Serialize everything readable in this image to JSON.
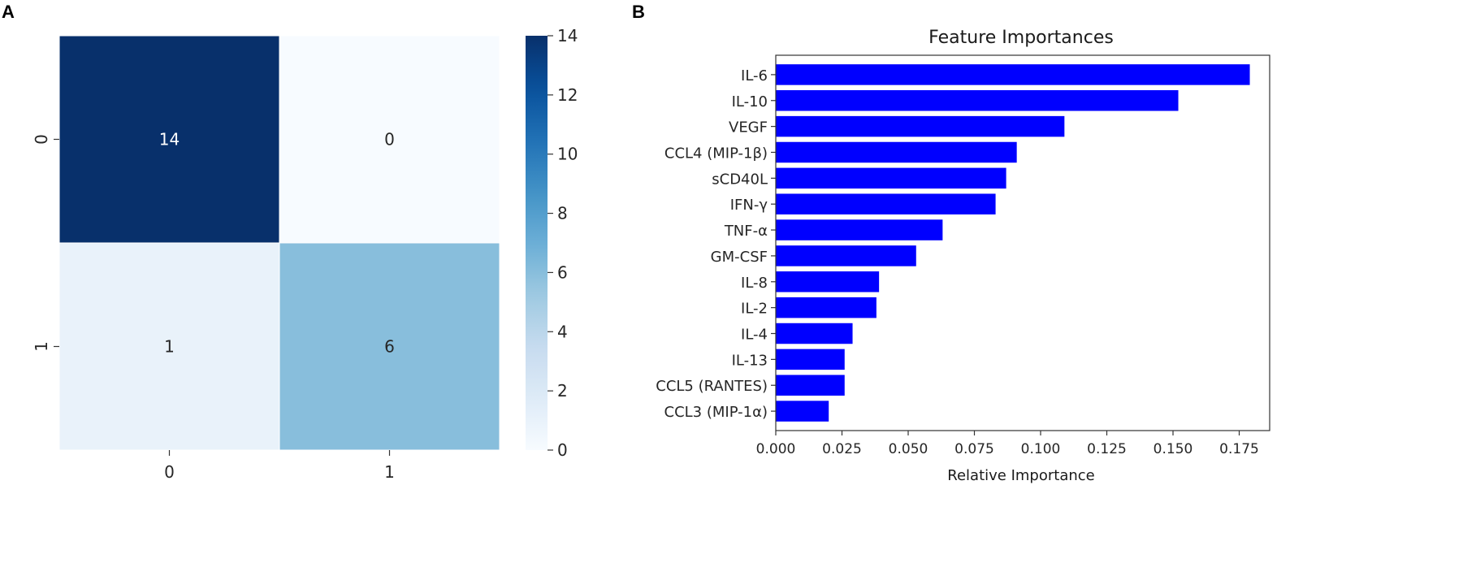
{
  "panels": {
    "a": "A",
    "b": "B"
  },
  "chart_data": [
    {
      "type": "heatmap",
      "panel": "A",
      "title": "",
      "row_labels": [
        "0",
        "1"
      ],
      "col_labels": [
        "0",
        "1"
      ],
      "matrix": [
        [
          14,
          0
        ],
        [
          1,
          6
        ]
      ],
      "cell_labels": [
        [
          "14",
          "0"
        ],
        [
          "1",
          "6"
        ]
      ],
      "colormap": "Blues",
      "colorbar": {
        "vmin": 0,
        "vmax": 14,
        "ticks": [
          0,
          2,
          4,
          6,
          8,
          10,
          12,
          14
        ],
        "tick_labels": [
          "0",
          "2",
          "4",
          "6",
          "8",
          "10",
          "12",
          "14"
        ]
      }
    },
    {
      "type": "bar",
      "orientation": "horizontal",
      "panel": "B",
      "title": "Feature Importances",
      "xlabel": "Relative Importance",
      "ylabel": "",
      "categories": [
        "IL-6",
        "IL-10",
        "VEGF",
        "CCL4 (MIP-1β)",
        "sCD40L",
        "IFN-γ",
        "TNF-α",
        "GM-CSF",
        "IL-8",
        "IL-2",
        "IL-4",
        "IL-13",
        "CCL5 (RANTES)",
        "CCL3 (MIP-1α)"
      ],
      "values": [
        0.179,
        0.152,
        0.109,
        0.091,
        0.087,
        0.083,
        0.063,
        0.053,
        0.039,
        0.038,
        0.029,
        0.026,
        0.026,
        0.02
      ],
      "xlim": [
        0,
        0.1865
      ],
      "xticks": [
        0,
        0.025,
        0.05,
        0.075,
        0.1,
        0.125,
        0.15,
        0.175
      ],
      "xtick_labels": [
        "0.000",
        "0.025",
        "0.050",
        "0.075",
        "0.100",
        "0.125",
        "0.150",
        "0.175"
      ],
      "bar_color": "#0000ff"
    }
  ]
}
